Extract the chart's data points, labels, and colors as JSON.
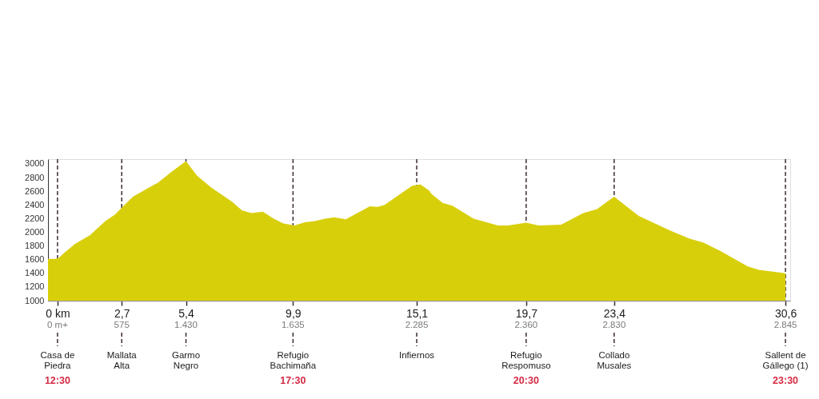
{
  "chart_data": {
    "type": "area",
    "color": "#d8cf0b",
    "x": [
      -0.4,
      -0.09,
      0.06,
      0.32,
      0.74,
      1.37,
      2.0,
      2.42,
      2.7,
      3.17,
      4.07,
      4.2,
      4.81,
      5.4,
      5.86,
      6.44,
      7.36,
      7.76,
      8.17,
      8.63,
      9.09,
      9.5,
      9.79,
      9.95,
      10.43,
      10.77,
      11.25,
      11.63,
      12.12,
      12.6,
      13.13,
      13.46,
      13.75,
      14.33,
      14.91,
      15.26,
      15.62,
      15.72,
      16.19,
      16.6,
      17.49,
      18.52,
      18.93,
      19.7,
      20.23,
      21.17,
      22.1,
      22.68,
      23.4,
      24.43,
      25.73,
      26.55,
      27.14,
      27.84,
      29.02,
      29.49,
      30.6
    ],
    "values": [
      1610,
      1610,
      1630,
      1710,
      1830,
      1960,
      2160,
      2260,
      2360,
      2520,
      2700,
      2720,
      2890,
      3040,
      2830,
      2660,
      2440,
      2320,
      2280,
      2300,
      2200,
      2130,
      2110,
      2100,
      2150,
      2160,
      2200,
      2220,
      2190,
      2280,
      2380,
      2370,
      2400,
      2540,
      2680,
      2700,
      2610,
      2560,
      2430,
      2390,
      2200,
      2100,
      2100,
      2140,
      2100,
      2110,
      2280,
      2340,
      2520,
      2240,
      2030,
      1910,
      1850,
      1730,
      1500,
      1450,
      1400
    ],
    "xlim": [
      -0.4,
      30.8
    ],
    "xticks": [
      {
        "value": 0,
        "label": "0 km"
      },
      {
        "value": 2.7,
        "label": "2,7"
      },
      {
        "value": 5.4,
        "label": "5,4"
      },
      {
        "value": 9.9,
        "label": "9,9"
      },
      {
        "value": 15.1,
        "label": "15,1"
      },
      {
        "value": 19.7,
        "label": "19,7"
      },
      {
        "value": 23.4,
        "label": "23,4"
      },
      {
        "value": 30.6,
        "label": "30,6"
      }
    ],
    "ylim": [
      1000,
      3070
    ],
    "yticks": [
      1000,
      1200,
      1400,
      1600,
      1800,
      2000,
      2200,
      2400,
      2600,
      2800,
      3000
    ],
    "ref_lines": [
      {
        "axis": "x",
        "value": 0,
        "label": "Casa de\nPiedra",
        "color": "#3d2b36",
        "line_style": "dashed"
      },
      {
        "axis": "x",
        "value": 2.7,
        "label": "Mallata\nAlta",
        "color": "#3d2b36",
        "line_style": "dashed"
      },
      {
        "axis": "x",
        "value": 5.4,
        "label": "Garmo\nNegro",
        "color": "#3d2b36",
        "line_style": "dashed"
      },
      {
        "axis": "x",
        "value": 9.9,
        "label": "Refugio\nBachimaña",
        "color": "#3d2b36",
        "line_style": "dashed"
      },
      {
        "axis": "x",
        "value": 15.1,
        "label": "Infiernos",
        "color": "#3d2b36",
        "line_style": "dashed"
      },
      {
        "axis": "x",
        "value": 19.7,
        "label": "Refugio\nRespomuso",
        "color": "#3d2b36",
        "line_style": "dashed"
      },
      {
        "axis": "x",
        "value": 23.4,
        "label": "Collado\nMusales",
        "color": "#3d2b36",
        "line_style": "dashed"
      },
      {
        "axis": "x",
        "value": 30.6,
        "label": "Sallent de\nGállego (1)",
        "color": "#3d2b36",
        "line_style": "dashed"
      }
    ],
    "annotations": [
      {
        "text": "0 m+",
        "x": 0
      },
      {
        "text": "575",
        "x": 2.7
      },
      {
        "text": "1.430",
        "x": 5.4
      },
      {
        "text": "1.635",
        "x": 9.9
      },
      {
        "text": "2.285",
        "x": 15.1
      },
      {
        "text": "2.360",
        "x": 19.7
      },
      {
        "text": "2.830",
        "x": 23.4
      },
      {
        "text": "2.845",
        "x": 30.6
      },
      {
        "text": "12:30",
        "x": 0
      },
      {
        "text": "17:30",
        "x": 9.9
      },
      {
        "text": "20:30",
        "x": 19.7
      },
      {
        "text": "23:30",
        "x": 30.6
      }
    ],
    "grid": false
  }
}
